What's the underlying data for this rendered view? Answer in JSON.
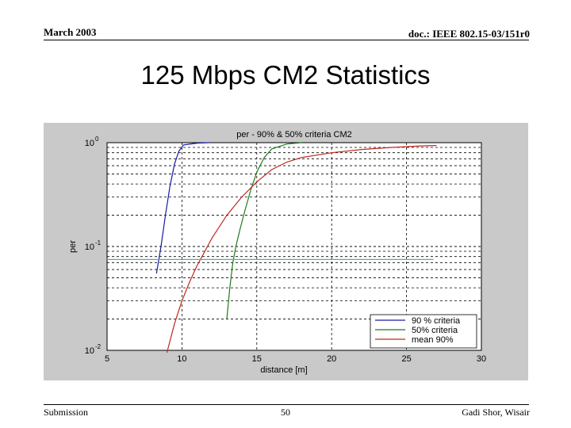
{
  "header": {
    "date": "March 2003",
    "doc_id": "doc.: IEEE 802.15-03/151r0"
  },
  "slide_title": "125 Mbps CM2 Statistics",
  "footer": {
    "left": "Submission",
    "page": "50",
    "right": "Gadi Shor, Wisair"
  },
  "colors": {
    "figure_bg": "#c9c9c9",
    "axes_bg": "#ffffff",
    "series_90": "#1a1aa8",
    "series_50": "#1f7a1f",
    "series_mean": "#c0281c",
    "threshold": "#3ab8b0"
  },
  "chart_data": {
    "type": "line",
    "title": "per - 90% & 50% criteria CM2",
    "xlabel": "distance [m]",
    "ylabel": "per",
    "xlim": [
      5,
      30
    ],
    "ylim": [
      0.01,
      1
    ],
    "yscale": "log",
    "grid": true,
    "xticks": [
      "5",
      "10",
      "15",
      "20",
      "25",
      "30"
    ],
    "yticks": [
      {
        "value": 1,
        "base": "10",
        "exp": "0"
      },
      {
        "value": 0.1,
        "base": "10",
        "exp": "-1"
      },
      {
        "value": 0.01,
        "base": "10",
        "exp": "-2"
      }
    ],
    "legend_position": "bottom-right",
    "series": [
      {
        "name": "90 % criteria",
        "color_key": "series_90",
        "x": [
          8.3,
          8.6,
          8.9,
          9.2,
          9.5,
          9.8,
          10.1,
          11.0,
          11.8
        ],
        "y": [
          0.055,
          0.1,
          0.2,
          0.38,
          0.62,
          0.83,
          0.95,
          0.99,
          1.0
        ]
      },
      {
        "name": "50% criteria",
        "color_key": "series_50",
        "x": [
          13.0,
          13.2,
          13.4,
          13.6,
          13.9,
          14.2,
          14.6,
          15.0,
          15.5,
          16.0,
          17.0,
          18.0
        ],
        "y": [
          0.02,
          0.04,
          0.07,
          0.1,
          0.15,
          0.22,
          0.35,
          0.52,
          0.72,
          0.87,
          0.97,
          1.0
        ]
      },
      {
        "name": "mean 90%",
        "color_key": "series_mean",
        "x": [
          9.0,
          9.5,
          10.0,
          10.5,
          11.0,
          12.0,
          13.0,
          14.0,
          15.0,
          16.0,
          17.0,
          18.0,
          20.0,
          22.0,
          24.0,
          26.0,
          27.0
        ],
        "y": [
          0.0095,
          0.018,
          0.03,
          0.045,
          0.065,
          0.12,
          0.2,
          0.3,
          0.42,
          0.55,
          0.65,
          0.72,
          0.8,
          0.86,
          0.9,
          0.93,
          0.94
        ]
      },
      {
        "color_key": "threshold",
        "x": [
          5,
          26.8
        ],
        "y": [
          0.075,
          0.075
        ]
      }
    ]
  }
}
